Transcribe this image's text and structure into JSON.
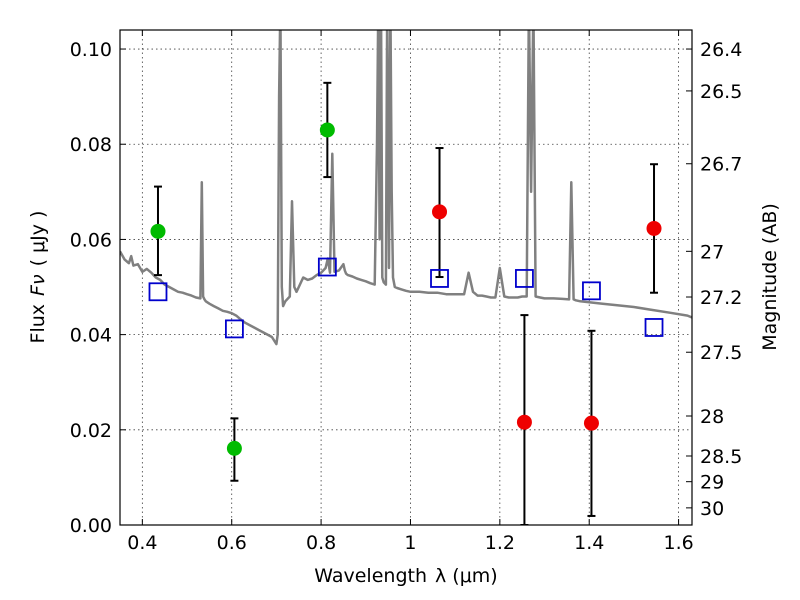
{
  "chart_data": {
    "type": "scatter",
    "xlabel_text": "Wavelength",
    "xlabel_unit": "λ (μm)",
    "ylabel_text": "Flux",
    "ylabel_symbol": "Fν",
    "ylabel_unit": "( μJy )",
    "y2label": "Magnitude (AB)",
    "xlim": [
      0.35,
      1.63
    ],
    "ylim": [
      0.0,
      0.104
    ],
    "grid": true,
    "x_ticks": [
      0.4,
      0.6,
      0.8,
      1.0,
      1.2,
      1.4,
      1.6
    ],
    "x_tick_labels": [
      "0.4",
      "0.6",
      "0.8",
      "1",
      "1.2",
      "1.4",
      "1.6"
    ],
    "y_ticks": [
      0.0,
      0.02,
      0.04,
      0.06,
      0.08,
      0.1
    ],
    "y_tick_labels": [
      "0.00",
      "0.02",
      "0.04",
      "0.06",
      "0.08",
      "0.10"
    ],
    "y2_ticks": [
      {
        "label": "26.4",
        "flux": 0.1
      },
      {
        "label": "26.5",
        "flux": 0.0912
      },
      {
        "label": "26.7",
        "flux": 0.0759
      },
      {
        "label": "27",
        "flux": 0.0575
      },
      {
        "label": "27.2",
        "flux": 0.0479
      },
      {
        "label": "27.5",
        "flux": 0.0363
      },
      {
        "label": "28",
        "flux": 0.0229
      },
      {
        "label": "28.5",
        "flux": 0.0145
      },
      {
        "label": "29",
        "flux": 0.0091
      },
      {
        "label": "30",
        "flux": 0.0036
      }
    ],
    "colors": {
      "model": "#808080",
      "green": "#00bb00",
      "red": "#ee0000",
      "square": "#0000cc",
      "errorbar": "#000000"
    },
    "series": [
      {
        "marker": "circle",
        "color": "green",
        "points": [
          {
            "x": 0.435,
            "y": 0.0617,
            "yerr_low": 0.0525,
            "yerr_high": 0.0711
          },
          {
            "x": 0.606,
            "y": 0.0161,
            "yerr_low": 0.0093,
            "yerr_high": 0.0224
          },
          {
            "x": 0.814,
            "y": 0.083,
            "yerr_low": 0.0731,
            "yerr_high": 0.0929
          }
        ]
      },
      {
        "marker": "circle",
        "color": "red",
        "points": [
          {
            "x": 1.065,
            "y": 0.0658,
            "yerr_low": 0.0521,
            "yerr_high": 0.0792
          },
          {
            "x": 1.255,
            "y": 0.0216,
            "yerr_low": 0.0,
            "yerr_high": 0.0441
          },
          {
            "x": 1.405,
            "y": 0.0214,
            "yerr_low": 0.0019,
            "yerr_high": 0.0408
          },
          {
            "x": 1.545,
            "y": 0.0623,
            "yerr_low": 0.0488,
            "yerr_high": 0.0758
          }
        ]
      },
      {
        "marker": "square",
        "color": "square",
        "points": [
          {
            "x": 0.435,
            "y": 0.049
          },
          {
            "x": 0.606,
            "y": 0.0412
          },
          {
            "x": 0.814,
            "y": 0.0542
          },
          {
            "x": 1.065,
            "y": 0.0518
          },
          {
            "x": 1.255,
            "y": 0.0518
          },
          {
            "x": 1.405,
            "y": 0.0492
          },
          {
            "x": 1.545,
            "y": 0.0415
          }
        ]
      }
    ],
    "model_spectrum": {
      "x": [
        0.35,
        0.36,
        0.37,
        0.375,
        0.38,
        0.39,
        0.4,
        0.41,
        0.42,
        0.43,
        0.44,
        0.45,
        0.46,
        0.47,
        0.48,
        0.49,
        0.5,
        0.51,
        0.52,
        0.53,
        0.533,
        0.536,
        0.539,
        0.542,
        0.55,
        0.56,
        0.57,
        0.58,
        0.59,
        0.6,
        0.61,
        0.62,
        0.63,
        0.64,
        0.65,
        0.66,
        0.67,
        0.68,
        0.69,
        0.7,
        0.703,
        0.706,
        0.709,
        0.712,
        0.715,
        0.72,
        0.73,
        0.735,
        0.74,
        0.745,
        0.75,
        0.76,
        0.77,
        0.78,
        0.79,
        0.8,
        0.81,
        0.815,
        0.82,
        0.825,
        0.83,
        0.84,
        0.85,
        0.853,
        0.856,
        0.86,
        0.87,
        0.88,
        0.89,
        0.9,
        0.91,
        0.92,
        0.925,
        0.928,
        0.931,
        0.934,
        0.937,
        0.94,
        0.945,
        0.948,
        0.952,
        0.955,
        0.958,
        0.961,
        0.965,
        0.97,
        0.98,
        0.99,
        1.0,
        1.02,
        1.04,
        1.06,
        1.08,
        1.1,
        1.12,
        1.13,
        1.14,
        1.15,
        1.16,
        1.17,
        1.18,
        1.19,
        1.2,
        1.21,
        1.22,
        1.24,
        1.25,
        1.26,
        1.265,
        1.27,
        1.275,
        1.28,
        1.29,
        1.3,
        1.32,
        1.34,
        1.355,
        1.36,
        1.365,
        1.37,
        1.38,
        1.4,
        1.43,
        1.46,
        1.5,
        1.54,
        1.58,
        1.62,
        1.63
      ],
      "y": [
        0.0575,
        0.0558,
        0.055,
        0.0565,
        0.0545,
        0.0548,
        0.0532,
        0.0538,
        0.053,
        0.052,
        0.0515,
        0.0505,
        0.05,
        0.0495,
        0.049,
        0.0488,
        0.0485,
        0.0482,
        0.0478,
        0.0476,
        0.072,
        0.048,
        0.0474,
        0.047,
        0.0465,
        0.046,
        0.0455,
        0.045,
        0.0448,
        0.0445,
        0.044,
        0.0432,
        0.0425,
        0.042,
        0.0415,
        0.041,
        0.0405,
        0.04,
        0.0395,
        0.038,
        0.04,
        0.09,
        0.11,
        0.05,
        0.046,
        0.047,
        0.048,
        0.068,
        0.05,
        0.049,
        0.05,
        0.052,
        0.0515,
        0.0518,
        0.0525,
        0.053,
        0.054,
        0.056,
        0.053,
        0.078,
        0.0532,
        0.0535,
        0.0548,
        0.0535,
        0.0528,
        0.0525,
        0.0522,
        0.0518,
        0.0515,
        0.0512,
        0.0508,
        0.0505,
        0.08,
        0.11,
        0.06,
        0.11,
        0.052,
        0.051,
        0.0505,
        0.11,
        0.054,
        0.11,
        0.07,
        0.052,
        0.05,
        0.0498,
        0.0495,
        0.0492,
        0.049,
        0.049,
        0.0488,
        0.0488,
        0.0485,
        0.0485,
        0.0485,
        0.053,
        0.049,
        0.0482,
        0.0482,
        0.048,
        0.0478,
        0.0478,
        0.054,
        0.048,
        0.0478,
        0.0478,
        0.048,
        0.048,
        0.11,
        0.07,
        0.11,
        0.048,
        0.0478,
        0.0476,
        0.0476,
        0.0475,
        0.0474,
        0.072,
        0.0474,
        0.0472,
        0.047,
        0.0468,
        0.0465,
        0.0462,
        0.0458,
        0.0452,
        0.0446,
        0.044,
        0.0436
      ]
    }
  }
}
